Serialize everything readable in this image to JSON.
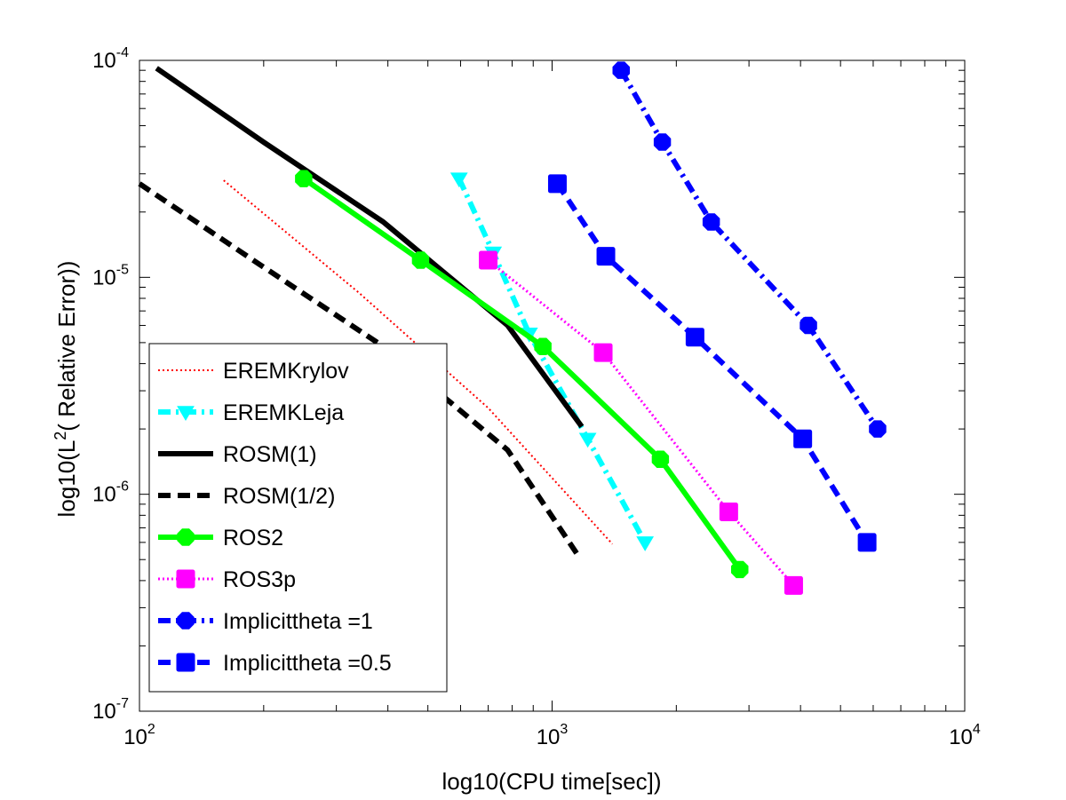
{
  "chart_data": {
    "type": "line",
    "title": "",
    "xlabel": "log10(CPU time[sec])",
    "ylabel_prefix": "log10(L",
    "ylabel_sup": "2",
    "ylabel_suffix": "( Relative Error))",
    "xscale": "log",
    "yscale": "log",
    "xlim": [
      100,
      10000
    ],
    "ylim": [
      1e-07,
      0.0001
    ],
    "grid": false,
    "legend_position": "bottom-left",
    "x_ticks": [
      {
        "value": 100,
        "base": "10",
        "exp": "2"
      },
      {
        "value": 1000,
        "base": "10",
        "exp": "3"
      },
      {
        "value": 10000,
        "base": "10",
        "exp": "4"
      }
    ],
    "y_ticks": [
      {
        "value": 1e-07,
        "base": "10",
        "exp": "-7"
      },
      {
        "value": 1e-06,
        "base": "10",
        "exp": "-6"
      },
      {
        "value": 1e-05,
        "base": "10",
        "exp": "-5"
      },
      {
        "value": 0.0001,
        "base": "10",
        "exp": "-4"
      }
    ],
    "series": [
      {
        "name": "EREMKrylov",
        "color": "#ff0000",
        "line": "dotted",
        "marker": "none",
        "x": [
          160,
          340,
          700,
          1400
        ],
        "y": [
          2.8e-05,
          8.5e-06,
          2.5e-06,
          5.9e-07
        ]
      },
      {
        "name": "EREMKLeja",
        "color": "#00ffff",
        "line": "dashdot",
        "marker": "triangle-down",
        "x": [
          595,
          720,
          880,
          1220,
          1680
        ],
        "y": [
          2.85e-05,
          1.3e-05,
          5.5e-06,
          1.8e-06,
          6e-07
        ]
      },
      {
        "name": "ROSM(1)",
        "color": "#000000",
        "line": "solid",
        "marker": "none",
        "x": [
          110,
          200,
          390,
          780,
          1180
        ],
        "y": [
          9.2e-05,
          4.2e-05,
          1.8e-05,
          6e-06,
          2.05e-06
        ]
      },
      {
        "name": "ROSM(1/2)",
        "color": "#000000",
        "line": "dashed",
        "marker": "none",
        "x": [
          100,
          195,
          390,
          780,
          1150
        ],
        "y": [
          2.7e-05,
          1.15e-05,
          4.8e-06,
          1.6e-06,
          5.3e-07
        ]
      },
      {
        "name": "ROS2",
        "color": "#00ff00",
        "line": "solid",
        "marker": "hexagon",
        "x": [
          250,
          480,
          950,
          1830,
          2850
        ],
        "y": [
          2.85e-05,
          1.2e-05,
          4.8e-06,
          1.45e-06,
          4.5e-07
        ]
      },
      {
        "name": "ROS3p",
        "color": "#ff00ff",
        "line": "dotted",
        "marker": "square",
        "x": [
          700,
          1330,
          2680,
          3850
        ],
        "y": [
          1.2e-05,
          4.5e-06,
          8.3e-07,
          3.8e-07
        ]
      },
      {
        "name": "Implicittheta =1",
        "color": "#0000ff",
        "line": "dashdot",
        "marker": "hexagon",
        "x": [
          1470,
          1850,
          2430,
          4180,
          6150
        ],
        "y": [
          9e-05,
          4.2e-05,
          1.8e-05,
          6e-06,
          2e-06
        ]
      },
      {
        "name": "Implicittheta =0.5",
        "color": "#0000ff",
        "line": "dashed",
        "marker": "square",
        "x": [
          1030,
          1350,
          2220,
          4050,
          5800
        ],
        "y": [
          2.7e-05,
          1.25e-05,
          5.3e-06,
          1.8e-06,
          6e-07
        ]
      }
    ]
  }
}
